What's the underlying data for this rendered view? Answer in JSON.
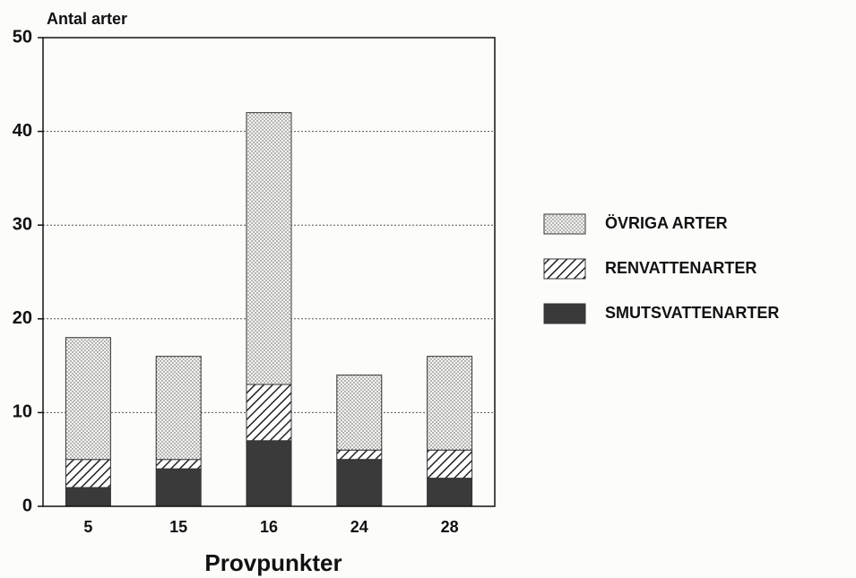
{
  "chart_data": {
    "type": "stacked_bar",
    "y_label": "Antal arter",
    "x_label": "Provpunkter",
    "categories": [
      "5",
      "15",
      "16",
      "24",
      "28"
    ],
    "series": [
      {
        "name": "SMUTSVATTENARTER",
        "color": "#3a3a3a",
        "pattern": "solid",
        "values": [
          2,
          4,
          7,
          5,
          3
        ]
      },
      {
        "name": "RENVATTENARTER",
        "color": "#222222",
        "pattern": "hatch",
        "values": [
          3,
          1,
          6,
          1,
          3
        ]
      },
      {
        "name": "ÖVRIGA ARTER",
        "color": "#555555",
        "pattern": "dots",
        "values": [
          13,
          11,
          29,
          8,
          10
        ]
      }
    ],
    "ylim": [
      0,
      50
    ],
    "yticks": [
      0,
      10,
      20,
      30,
      40,
      50
    ],
    "grid": true,
    "legend": "right"
  }
}
